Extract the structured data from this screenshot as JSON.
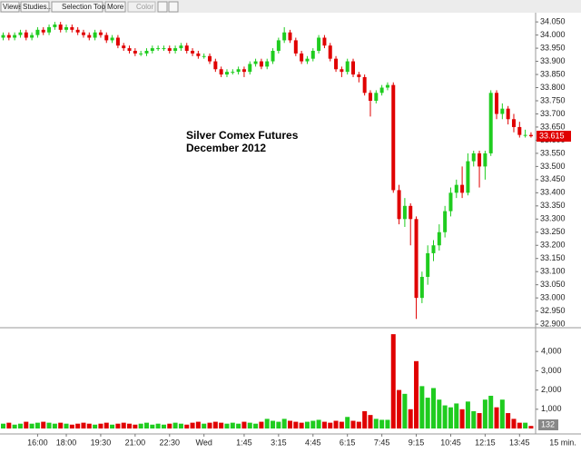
{
  "toolbar": {
    "buttons": [
      "Views",
      "Studies...",
      "Selection Tool",
      "More",
      "Color"
    ]
  },
  "chart_data": {
    "type": "candlestick",
    "title": "Silver Comex Futures",
    "subtitle": "December 2012",
    "interval_label": "15 min.",
    "up_color": "#1fcc1f",
    "down_color": "#e00000",
    "categories": [
      null,
      null,
      null,
      null,
      null,
      null,
      "16:00",
      null,
      null,
      null,
      null,
      "18:00",
      null,
      null,
      null,
      null,
      null,
      "19:30",
      null,
      null,
      null,
      null,
      null,
      "21:00",
      null,
      null,
      null,
      null,
      null,
      "22:30",
      null,
      null,
      null,
      null,
      null,
      "Wed",
      null,
      null,
      null,
      null,
      null,
      null,
      "1:45",
      null,
      null,
      null,
      null,
      null,
      "3:15",
      null,
      null,
      null,
      null,
      null,
      "4:45",
      null,
      null,
      null,
      null,
      null,
      "6:15",
      null,
      null,
      null,
      null,
      null,
      "7:45",
      null,
      null,
      null,
      null,
      null,
      "9:15",
      null,
      null,
      null,
      null,
      null,
      "10:45",
      null,
      null,
      null,
      null,
      null,
      "12:15",
      null,
      null,
      null,
      null,
      null,
      "13:45",
      null,
      null
    ],
    "open": [
      33.99,
      34.0,
      33.99,
      34.0,
      34.01,
      33.99,
      34.0,
      34.02,
      34.01,
      34.03,
      34.04,
      34.02,
      34.03,
      34.02,
      34.01,
      34.0,
      33.99,
      34.01,
      34.0,
      33.98,
      33.99,
      33.96,
      33.95,
      33.94,
      33.93,
      33.93,
      33.94,
      33.95,
      33.95,
      33.95,
      33.94,
      33.95,
      33.96,
      33.94,
      33.93,
      33.92,
      33.92,
      33.9,
      33.87,
      33.85,
      33.86,
      33.86,
      33.87,
      33.86,
      33.89,
      33.9,
      33.88,
      33.9,
      33.94,
      33.98,
      34.01,
      33.98,
      33.93,
      33.9,
      33.91,
      33.94,
      33.99,
      33.96,
      33.91,
      33.87,
      33.86,
      33.9,
      33.85,
      33.84,
      33.78,
      33.75,
      33.78,
      33.8,
      33.81,
      33.41,
      33.3,
      33.35,
      33.3,
      33.0,
      33.08,
      33.17,
      33.2,
      33.25,
      33.33,
      33.4,
      33.43,
      33.4,
      33.52,
      33.55,
      33.5,
      33.55,
      33.78,
      33.7,
      33.72,
      33.68,
      33.65,
      33.62,
      33.62
    ],
    "high": [
      34.01,
      34.01,
      34.01,
      34.02,
      34.02,
      34.01,
      34.03,
      34.03,
      34.04,
      34.05,
      34.05,
      34.04,
      34.04,
      34.03,
      34.02,
      34.01,
      34.02,
      34.02,
      34.01,
      34.0,
      34.0,
      33.97,
      33.96,
      33.95,
      33.94,
      33.95,
      33.96,
      33.96,
      33.96,
      33.96,
      33.96,
      33.97,
      33.97,
      33.95,
      33.94,
      33.93,
      33.93,
      33.91,
      33.88,
      33.87,
      33.87,
      33.88,
      33.88,
      33.9,
      33.91,
      33.91,
      33.91,
      33.95,
      33.99,
      34.03,
      34.02,
      33.99,
      33.94,
      33.92,
      33.95,
      34.0,
      34.0,
      33.97,
      33.92,
      33.88,
      33.91,
      33.91,
      33.86,
      33.85,
      33.79,
      33.79,
      33.81,
      33.82,
      33.82,
      33.43,
      33.38,
      33.36,
      33.31,
      33.1,
      33.2,
      33.22,
      33.28,
      33.35,
      33.42,
      33.45,
      33.5,
      33.55,
      33.56,
      33.56,
      33.56,
      33.79,
      33.79,
      33.74,
      33.73,
      33.7,
      33.67,
      33.64,
      33.63
    ],
    "low": [
      33.98,
      33.98,
      33.98,
      33.99,
      33.98,
      33.98,
      33.99,
      34.0,
      34.0,
      34.02,
      34.01,
      34.01,
      34.01,
      34.0,
      33.99,
      33.98,
      33.98,
      33.99,
      33.97,
      33.97,
      33.95,
      33.94,
      33.93,
      33.92,
      33.92,
      33.92,
      33.93,
      33.94,
      33.94,
      33.93,
      33.93,
      33.94,
      33.93,
      33.92,
      33.91,
      33.91,
      33.89,
      33.86,
      33.84,
      33.84,
      33.85,
      33.85,
      33.84,
      33.85,
      33.88,
      33.87,
      33.87,
      33.89,
      33.93,
      33.97,
      33.97,
      33.92,
      33.89,
      33.89,
      33.9,
      33.93,
      33.95,
      33.9,
      33.86,
      33.84,
      33.85,
      33.84,
      33.82,
      33.77,
      33.69,
      33.74,
      33.77,
      33.79,
      33.4,
      33.28,
      33.27,
      33.2,
      32.92,
      32.98,
      33.05,
      33.14,
      33.18,
      33.23,
      33.31,
      33.38,
      33.38,
      33.39,
      33.5,
      33.42,
      33.45,
      33.54,
      33.68,
      33.68,
      33.66,
      33.63,
      33.61,
      33.61,
      33.61
    ],
    "close": [
      34.0,
      33.99,
      34.0,
      34.01,
      33.99,
      34.0,
      34.02,
      34.01,
      34.03,
      34.04,
      34.02,
      34.03,
      34.02,
      34.01,
      34.0,
      33.99,
      34.01,
      34.0,
      33.98,
      33.99,
      33.96,
      33.95,
      33.94,
      33.93,
      33.93,
      33.94,
      33.95,
      33.95,
      33.95,
      33.94,
      33.95,
      33.96,
      33.94,
      33.93,
      33.92,
      33.92,
      33.9,
      33.87,
      33.85,
      33.86,
      33.86,
      33.87,
      33.86,
      33.89,
      33.9,
      33.88,
      33.9,
      33.94,
      33.98,
      34.01,
      33.98,
      33.93,
      33.9,
      33.91,
      33.94,
      33.99,
      33.96,
      33.91,
      33.87,
      33.86,
      33.9,
      33.85,
      33.84,
      33.78,
      33.75,
      33.78,
      33.8,
      33.81,
      33.41,
      33.3,
      33.35,
      33.3,
      33.0,
      33.08,
      33.17,
      33.2,
      33.25,
      33.33,
      33.4,
      33.43,
      33.4,
      33.52,
      33.55,
      33.5,
      33.55,
      33.78,
      33.7,
      33.72,
      33.68,
      33.65,
      33.62,
      33.62,
      33.615
    ],
    "ylim": [
      32.89,
      34.085
    ],
    "yticks": [
      {
        "value": 32.9,
        "label": "32.900"
      },
      {
        "value": 32.95,
        "label": "32.950"
      },
      {
        "value": 33.0,
        "label": "33.000"
      },
      {
        "value": 33.05,
        "label": "33.050"
      },
      {
        "value": 33.1,
        "label": "33.100"
      },
      {
        "value": 33.15,
        "label": "33.150"
      },
      {
        "value": 33.2,
        "label": "33.200"
      },
      {
        "value": 33.25,
        "label": "33.250"
      },
      {
        "value": 33.3,
        "label": "33.300"
      },
      {
        "value": 33.35,
        "label": "33.350"
      },
      {
        "value": 33.4,
        "label": "33.400"
      },
      {
        "value": 33.45,
        "label": "33.450"
      },
      {
        "value": 33.5,
        "label": "33.500"
      },
      {
        "value": 33.55,
        "label": "33.550"
      },
      {
        "value": 33.6,
        "label": "33.600"
      },
      {
        "value": 33.65,
        "label": "33.650"
      },
      {
        "value": 33.7,
        "label": "33.700"
      },
      {
        "value": 33.75,
        "label": "33.750"
      },
      {
        "value": 33.8,
        "label": "33.800"
      },
      {
        "value": 33.85,
        "label": "33.850"
      },
      {
        "value": 33.9,
        "label": "33.900"
      },
      {
        "value": 33.95,
        "label": "33.950"
      },
      {
        "value": 34.0,
        "label": "34.000"
      },
      {
        "value": 34.05,
        "label": "34.050"
      }
    ],
    "volume": {
      "values": [
        250,
        300,
        200,
        250,
        350,
        250,
        300,
        350,
        300,
        250,
        300,
        250,
        200,
        250,
        300,
        250,
        200,
        250,
        300,
        200,
        250,
        300,
        250,
        200,
        250,
        300,
        200,
        250,
        200,
        250,
        300,
        250,
        200,
        300,
        350,
        250,
        300,
        350,
        300,
        250,
        300,
        250,
        350,
        300,
        250,
        350,
        500,
        400,
        350,
        500,
        400,
        350,
        300,
        350,
        400,
        450,
        350,
        300,
        400,
        350,
        600,
        400,
        350,
        900,
        700,
        500,
        450,
        450,
        4900,
        2000,
        1800,
        1000,
        3500,
        2200,
        1600,
        2100,
        1500,
        1200,
        1100,
        1300,
        1000,
        1400,
        900,
        800,
        1500,
        1700,
        1100,
        1500,
        800,
        500,
        300,
        300,
        132
      ],
      "ylim": [
        0,
        5000
      ],
      "yticks": [
        {
          "value": 1000,
          "label": "1,000"
        },
        {
          "value": 2000,
          "label": "2,000"
        },
        {
          "value": 3000,
          "label": "3,000"
        },
        {
          "value": 4000,
          "label": "4,000"
        }
      ]
    }
  }
}
